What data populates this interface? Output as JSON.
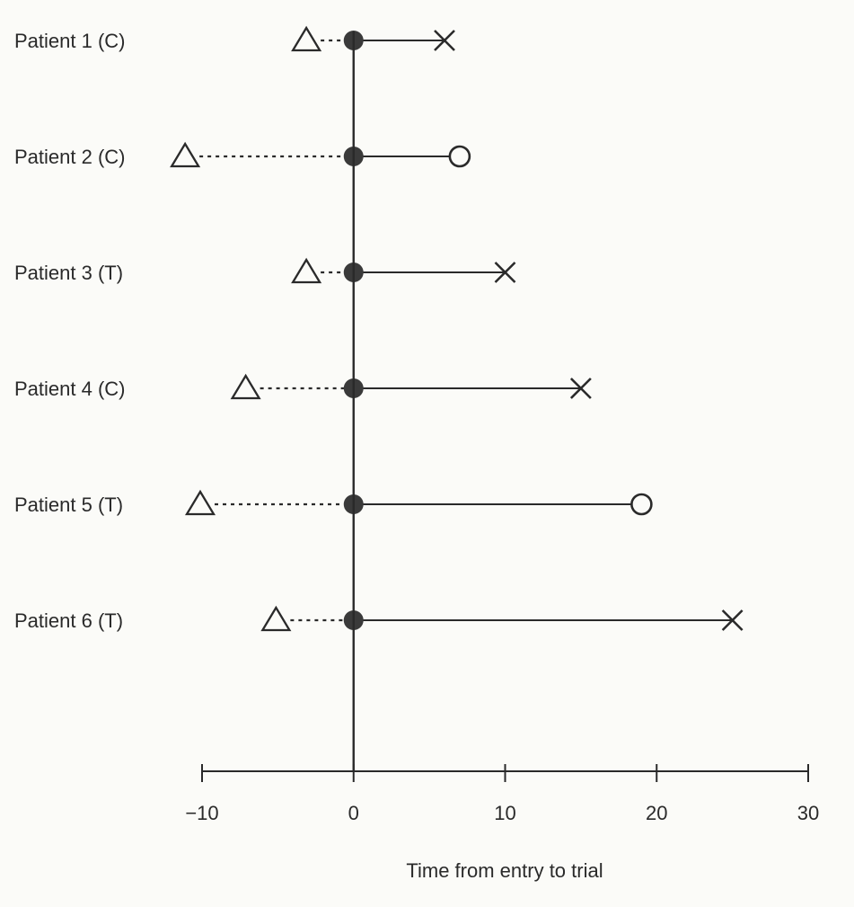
{
  "chart_data": {
    "type": "scatter",
    "xlabel": "Time from entry to trial",
    "xlim": [
      -10,
      30
    ],
    "xticks": [
      -10,
      0,
      10,
      20,
      30
    ],
    "xtick_labels": [
      "−10",
      "0",
      "10",
      "20",
      "30"
    ],
    "patients": [
      {
        "label": "Patient 1 (C)",
        "onset": -3,
        "entry": 0,
        "end": 6,
        "end_marker": "cross"
      },
      {
        "label": "Patient 2 (C)",
        "onset": -11,
        "entry": 0,
        "end": 7,
        "end_marker": "circle"
      },
      {
        "label": "Patient 3 (T)",
        "onset": -3,
        "entry": 0,
        "end": 10,
        "end_marker": "cross"
      },
      {
        "label": "Patient 4 (C)",
        "onset": -7,
        "entry": 0,
        "end": 15,
        "end_marker": "cross"
      },
      {
        "label": "Patient 5 (T)",
        "onset": -10,
        "entry": 0,
        "end": 19,
        "end_marker": "circle"
      },
      {
        "label": "Patient 6 (T)",
        "onset": -5,
        "entry": 0,
        "end": 25,
        "end_marker": "cross"
      }
    ],
    "colors": {
      "ink": "#2a2a2a",
      "dot": "#3a3a3a",
      "background": "#fbfbf8"
    }
  }
}
